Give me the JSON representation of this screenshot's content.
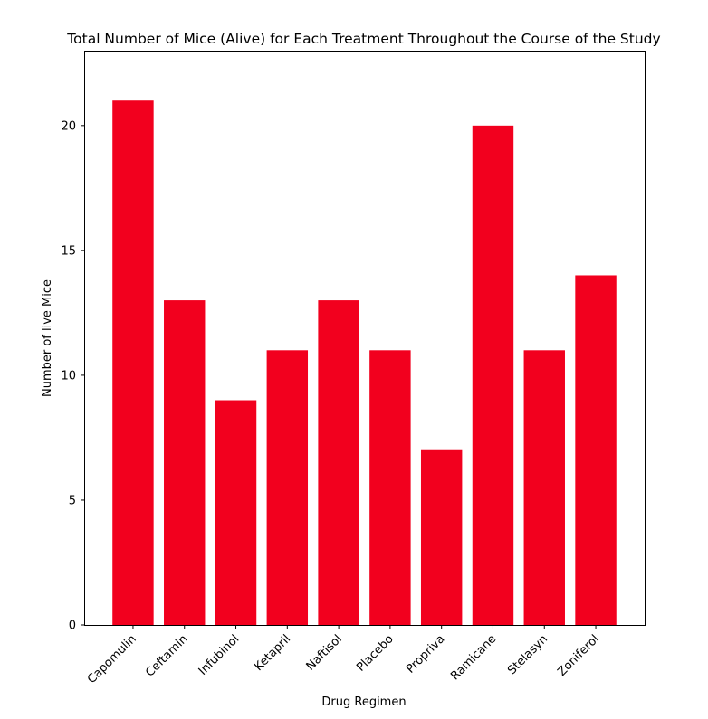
{
  "chart_data": {
    "type": "bar",
    "title": "Total Number of Mice (Alive) for Each Treatment Throughout the Course of the Study",
    "xlabel": "Drug Regimen",
    "ylabel": "Number of live Mice",
    "categories": [
      "Capomulin",
      "Ceftamin",
      "Infubinol",
      "Ketapril",
      "Naftisol",
      "Placebo",
      "Propriva",
      "Ramicane",
      "Stelasyn",
      "Zoniferol"
    ],
    "values": [
      21,
      13,
      9,
      11,
      13,
      11,
      7,
      20,
      11,
      14
    ],
    "ylim": [
      0,
      23
    ],
    "yticks": [
      "0",
      "5",
      "10",
      "15",
      "20"
    ],
    "bar_color": "#f2001e",
    "grid": false,
    "legend": "none"
  }
}
